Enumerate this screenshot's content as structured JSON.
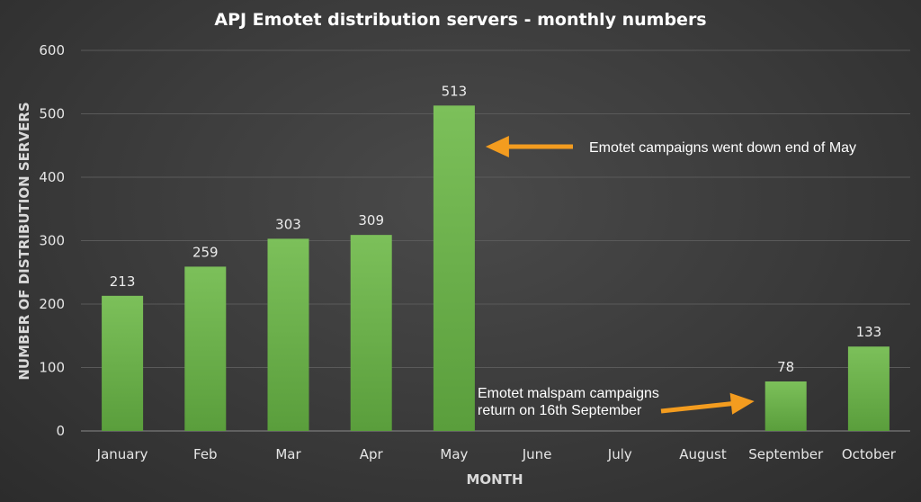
{
  "chart_data": {
    "type": "bar",
    "title": "APJ Emotet distribution servers - monthly numbers",
    "xlabel": "MONTH",
    "ylabel": "NUMBER OF DISTRIBUTION SERVERS",
    "categories": [
      "January",
      "Feb",
      "Mar",
      "Apr",
      "May",
      "June",
      "July",
      "August",
      "September",
      "October"
    ],
    "values": [
      213,
      259,
      303,
      309,
      513,
      null,
      null,
      null,
      78,
      133
    ],
    "data_labels": [
      "213",
      "259",
      "303",
      "309",
      "513",
      "",
      "",
      "",
      "78",
      "133"
    ],
    "ylim": [
      0,
      600
    ],
    "yticks": [
      "0",
      "100",
      "200",
      "300",
      "400",
      "500",
      "600"
    ],
    "grid": true,
    "bar_color": "#6ab04c",
    "arrow_color": "#f39c1f",
    "annotations": [
      {
        "lines": [
          "Emotet campaigns went down end of May"
        ],
        "points_to": "May"
      },
      {
        "lines": [
          "Emotet malspam campaigns",
          "return on 16th September"
        ],
        "points_to": "September"
      }
    ]
  }
}
